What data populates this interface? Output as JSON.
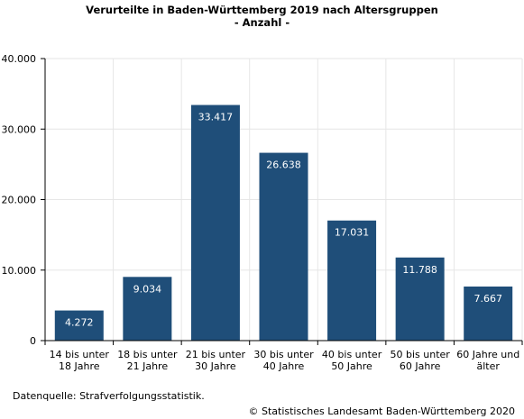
{
  "chart_data": {
    "type": "bar",
    "title": "Verurteilte in Baden-Württemberg 2019 nach Altersgruppen",
    "subtitle": "- Anzahl -",
    "categories": [
      [
        "14 bis unter",
        "18 Jahre"
      ],
      [
        "18 bis unter",
        "21 Jahre"
      ],
      [
        "21 bis unter",
        "30 Jahre"
      ],
      [
        "30 bis unter",
        "40 Jahre"
      ],
      [
        "40 bis unter",
        "50 Jahre"
      ],
      [
        "50 bis unter",
        "60 Jahre"
      ],
      [
        "60 Jahre und",
        "älter"
      ]
    ],
    "values": [
      4272,
      9034,
      33417,
      26638,
      17031,
      11788,
      7667
    ],
    "value_labels": [
      "4.272",
      "9.034",
      "33.417",
      "26.638",
      "17.031",
      "11.788",
      "7.667"
    ],
    "ylim": [
      0,
      40000
    ],
    "yticks": [
      0,
      10000,
      20000,
      30000,
      40000
    ],
    "ytick_labels": [
      "0",
      "10.000",
      "20.000",
      "30.000",
      "40.000"
    ],
    "xlabel": "",
    "ylabel": "",
    "grid": true,
    "bar_color": "#1f4e79"
  },
  "footer": {
    "source": "Datenquelle: Strafverfolgungsstatistik.",
    "copyright": "© Statistisches Landesamt Baden-Württemberg 2020"
  }
}
